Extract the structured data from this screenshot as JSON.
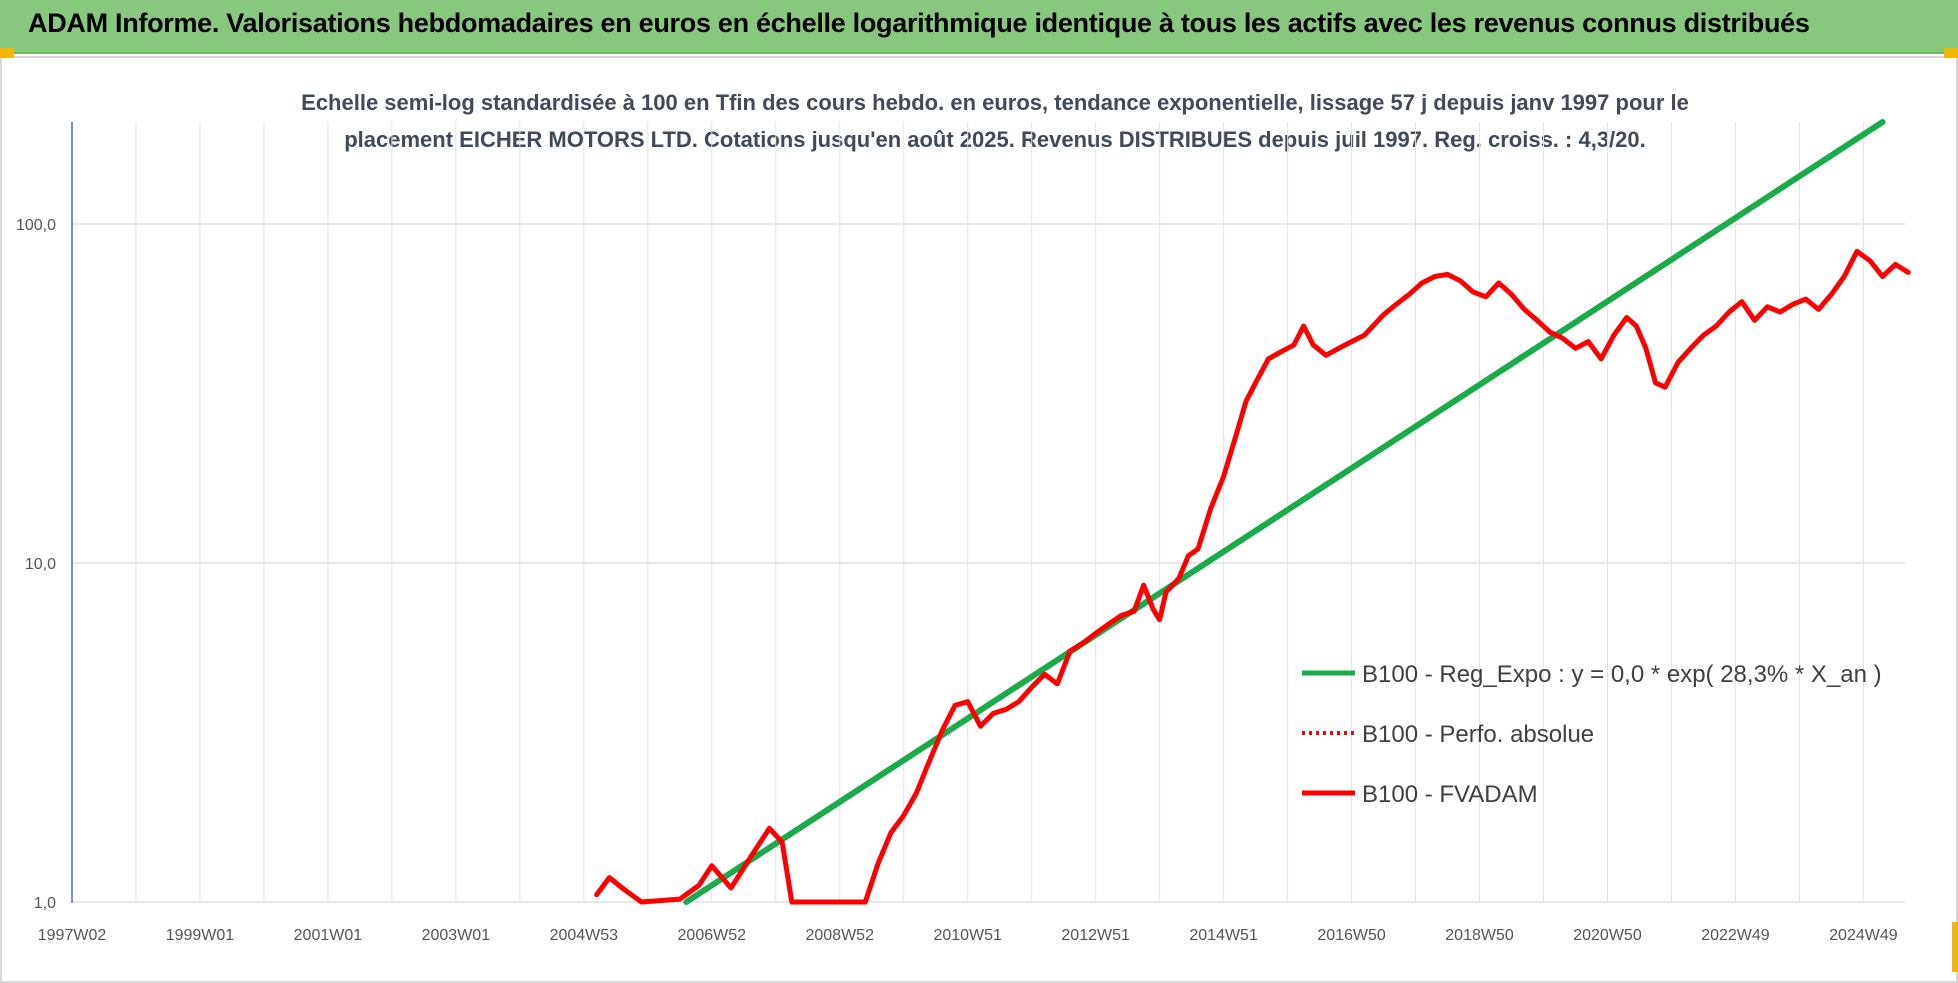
{
  "header": {
    "title": "ADAM Informe. Valorisations hebdomadaires en euros en échelle logarithmique identique à tous les actifs avec les revenus connus distribués"
  },
  "chart_data": {
    "type": "line",
    "title_line1": "Echelle semi-log standardisée à 100 en Tfin des cours hebdo. en euros, tendance exponentielle, lissage 57 j depuis janv 1997 pour le",
    "title_line2": "placement EICHER MOTORS LTD. Cotations jusqu'en août 2025. Revenus DISTRIBUES depuis juil 1997. Reg. croiss. : 4,3/20.",
    "y_scale": "log",
    "ylim": [
      1,
      200
    ],
    "y_ticks": [
      {
        "value": 1,
        "label": "1,0"
      },
      {
        "value": 10,
        "label": "10,0"
      },
      {
        "value": 100,
        "label": "100,0"
      }
    ],
    "xlim": [
      1997.0,
      2025.65
    ],
    "x_ticks": [
      {
        "x": 1997.0,
        "label": "1997W02"
      },
      {
        "x": 1999.0,
        "label": "1999W01"
      },
      {
        "x": 2001.0,
        "label": "2001W01"
      },
      {
        "x": 2003.0,
        "label": "2003W01"
      },
      {
        "x": 2005.0,
        "label": "2004W53"
      },
      {
        "x": 2007.0,
        "label": "2006W52"
      },
      {
        "x": 2009.0,
        "label": "2008W52"
      },
      {
        "x": 2011.0,
        "label": "2010W51"
      },
      {
        "x": 2013.0,
        "label": "2012W51"
      },
      {
        "x": 2015.0,
        "label": "2014W51"
      },
      {
        "x": 2017.0,
        "label": "2016W50"
      },
      {
        "x": 2019.0,
        "label": "2018W50"
      },
      {
        "x": 2021.0,
        "label": "2020W50"
      },
      {
        "x": 2023.0,
        "label": "2022W49"
      },
      {
        "x": 2025.0,
        "label": "2024W49"
      }
    ],
    "grid": "vertical and horizontal, light gray",
    "legend_position": "right-middle",
    "series": [
      {
        "name": "B100 - Reg_Expo : y = 0,0 * exp( 28,3% *  X_an )",
        "color": "#1aab4b",
        "style": "solid",
        "points": [
          [
            2006.6,
            1.0
          ],
          [
            2025.3,
            200
          ]
        ]
      },
      {
        "name": "B100 - Perfo. absolue",
        "color": "#ff0000",
        "style": "dotted",
        "points": []
      },
      {
        "name": "B100 - FVADAM",
        "color": "#ff0000",
        "style": "solid",
        "points": [
          [
            2005.2,
            1.05
          ],
          [
            2005.4,
            1.18
          ],
          [
            2005.6,
            1.1
          ],
          [
            2005.9,
            1.0
          ],
          [
            2006.5,
            1.02
          ],
          [
            2006.8,
            1.12
          ],
          [
            2007.0,
            1.28
          ],
          [
            2007.3,
            1.1
          ],
          [
            2007.6,
            1.35
          ],
          [
            2007.9,
            1.65
          ],
          [
            2008.1,
            1.5
          ],
          [
            2008.25,
            1.0
          ],
          [
            2009.4,
            1.0
          ],
          [
            2009.6,
            1.3
          ],
          [
            2009.8,
            1.6
          ],
          [
            2010.0,
            1.8
          ],
          [
            2010.2,
            2.1
          ],
          [
            2010.4,
            2.6
          ],
          [
            2010.6,
            3.2
          ],
          [
            2010.8,
            3.8
          ],
          [
            2011.0,
            3.9
          ],
          [
            2011.2,
            3.3
          ],
          [
            2011.4,
            3.6
          ],
          [
            2011.6,
            3.7
          ],
          [
            2011.8,
            3.9
          ],
          [
            2012.0,
            4.3
          ],
          [
            2012.2,
            4.7
          ],
          [
            2012.4,
            4.4
          ],
          [
            2012.6,
            5.5
          ],
          [
            2012.8,
            5.8
          ],
          [
            2013.0,
            6.2
          ],
          [
            2013.2,
            6.6
          ],
          [
            2013.4,
            7.0
          ],
          [
            2013.6,
            7.2
          ],
          [
            2013.75,
            8.6
          ],
          [
            2013.9,
            7.3
          ],
          [
            2014.0,
            6.8
          ],
          [
            2014.1,
            8.2
          ],
          [
            2014.3,
            9.0
          ],
          [
            2014.45,
            10.5
          ],
          [
            2014.6,
            11.0
          ],
          [
            2014.8,
            14.5
          ],
          [
            2015.0,
            18.0
          ],
          [
            2015.2,
            24.0
          ],
          [
            2015.35,
            30.0
          ],
          [
            2015.5,
            34.0
          ],
          [
            2015.7,
            40.0
          ],
          [
            2015.9,
            42.0
          ],
          [
            2016.1,
            44.0
          ],
          [
            2016.25,
            50.0
          ],
          [
            2016.4,
            44.0
          ],
          [
            2016.6,
            41.0
          ],
          [
            2016.8,
            43.0
          ],
          [
            2017.0,
            45.0
          ],
          [
            2017.2,
            47.0
          ],
          [
            2017.5,
            54.0
          ],
          [
            2017.7,
            58.0
          ],
          [
            2017.9,
            62.0
          ],
          [
            2018.1,
            67.0
          ],
          [
            2018.3,
            70.0
          ],
          [
            2018.5,
            71.0
          ],
          [
            2018.7,
            68.0
          ],
          [
            2018.9,
            63.0
          ],
          [
            2019.1,
            61.0
          ],
          [
            2019.3,
            67.0
          ],
          [
            2019.5,
            62.0
          ],
          [
            2019.7,
            56.0
          ],
          [
            2019.9,
            52.0
          ],
          [
            2020.1,
            48.0
          ],
          [
            2020.3,
            46.0
          ],
          [
            2020.5,
            43.0
          ],
          [
            2020.7,
            45.0
          ],
          [
            2020.9,
            40.0
          ],
          [
            2021.1,
            47.0
          ],
          [
            2021.3,
            53.0
          ],
          [
            2021.45,
            50.0
          ],
          [
            2021.6,
            43.0
          ],
          [
            2021.75,
            34.0
          ],
          [
            2021.9,
            33.0
          ],
          [
            2022.1,
            39.0
          ],
          [
            2022.3,
            43.0
          ],
          [
            2022.5,
            47.0
          ],
          [
            2022.7,
            50.0
          ],
          [
            2022.9,
            55.0
          ],
          [
            2023.1,
            59.0
          ],
          [
            2023.3,
            52.0
          ],
          [
            2023.5,
            57.0
          ],
          [
            2023.7,
            55.0
          ],
          [
            2023.9,
            58.0
          ],
          [
            2024.1,
            60.0
          ],
          [
            2024.3,
            56.0
          ],
          [
            2024.5,
            62.0
          ],
          [
            2024.7,
            70.0
          ],
          [
            2024.9,
            83.0
          ],
          [
            2025.1,
            78.0
          ],
          [
            2025.3,
            70.0
          ],
          [
            2025.5,
            76.0
          ],
          [
            2025.7,
            72.0
          ]
        ]
      }
    ]
  }
}
